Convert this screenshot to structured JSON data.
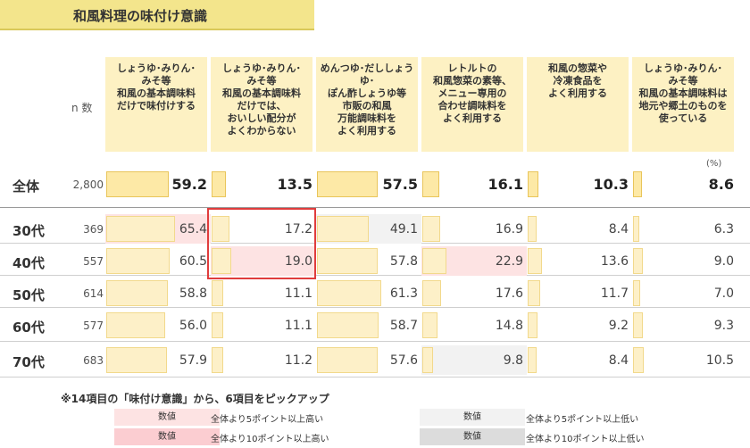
{
  "title": "和風料理の味付け意識",
  "n_label": "n 数",
  "unit": "(%)",
  "note": "※14項目の「味付け意識」から、6項目をピックアップ",
  "colors": {
    "bar": "#fdf0c8",
    "bar_total": "#fde9a6",
    "high5": "#fde3e3",
    "high10": "#fbcdd1",
    "low5": "#f2f2f2",
    "low10": "#dcdcdc",
    "highlight": "#e03c3c"
  },
  "chart_data": {
    "type": "bar",
    "categories": [
      "しょうゆ･みりん･\nみそ等\n和風の基本調味料\nだけで味付けする",
      "しょうゆ･みりん･\nみそ等\n和風の基本調味料\nだけでは、\nおいしい配分が\nよくわからない",
      "めんつゆ･だししょうゆ･\nぽん酢しょうゆ等\n市販の和風\n万能調味料を\nよく利用する",
      "レトルトの\n和風惣菜の素等、\nメニュー専用の\n合わせ調味料を\nよく利用する",
      "和風の惣菜や\n冷凍食品を\nよく利用する",
      "しょうゆ･みりん･\nみそ等\n和風の基本調味料は\n地元や郷土のものを\n使っている"
    ],
    "rows": [
      {
        "label": "全体",
        "n": "2,800",
        "values": [
          59.2,
          13.5,
          57.5,
          16.1,
          10.3,
          8.6
        ],
        "display": [
          "59.2",
          "13.5",
          "57.5",
          "16.1",
          "10.3",
          "8.6"
        ],
        "marks": [
          "",
          "",
          "",
          "",
          "",
          ""
        ]
      },
      {
        "label": "30代",
        "n": "369",
        "values": [
          65.4,
          17.2,
          49.1,
          16.9,
          8.4,
          6.3
        ],
        "display": [
          "65.4",
          "17.2",
          "49.1",
          "16.9",
          "8.4",
          "6.3"
        ],
        "marks": [
          "high5",
          "",
          "low5",
          "",
          "",
          ""
        ]
      },
      {
        "label": "40代",
        "n": "557",
        "values": [
          60.5,
          19.0,
          57.8,
          22.9,
          13.6,
          9.0
        ],
        "display": [
          "60.5",
          "19.0",
          "57.8",
          "22.9",
          "13.6",
          "9.0"
        ],
        "marks": [
          "",
          "high5",
          "",
          "high5",
          "",
          ""
        ]
      },
      {
        "label": "50代",
        "n": "614",
        "values": [
          58.8,
          11.1,
          61.3,
          17.6,
          11.7,
          7.0
        ],
        "display": [
          "58.8",
          "11.1",
          "61.3",
          "17.6",
          "11.7",
          "7.0"
        ],
        "marks": [
          "",
          "",
          "",
          "",
          "",
          ""
        ]
      },
      {
        "label": "60代",
        "n": "577",
        "values": [
          56.0,
          11.1,
          58.7,
          14.8,
          9.2,
          9.3
        ],
        "display": [
          "56.0",
          "11.1",
          "58.7",
          "14.8",
          "9.2",
          "9.3"
        ],
        "marks": [
          "",
          "",
          "",
          "",
          "",
          ""
        ]
      },
      {
        "label": "70代",
        "n": "683",
        "values": [
          57.9,
          11.2,
          57.6,
          9.8,
          8.4,
          10.5
        ],
        "display": [
          "57.9",
          "11.2",
          "57.6",
          "9.8",
          "8.4",
          "10.5"
        ],
        "marks": [
          "",
          "",
          "",
          "low5",
          "",
          ""
        ]
      }
    ],
    "ylim": [
      0,
      100
    ]
  },
  "legend": [
    {
      "swatch": "数値",
      "text": "全体より5ポイント以上高い",
      "kind": "high5"
    },
    {
      "swatch": "数値",
      "text": "全体より10ポイント以上高い",
      "kind": "high10"
    },
    {
      "swatch": "数値",
      "text": "全体より5ポイント以上低い",
      "kind": "low5"
    },
    {
      "swatch": "数値",
      "text": "全体より10ポイント以上低い",
      "kind": "low10"
    }
  ]
}
